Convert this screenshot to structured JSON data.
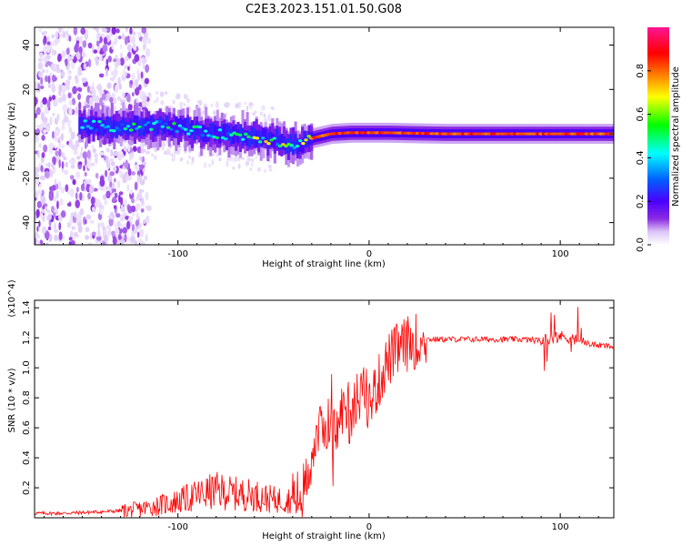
{
  "title": "C2E3.2023.151.01.50.G08",
  "chart_data": [
    {
      "type": "heatmap",
      "xlabel": "Height of straight line (km)",
      "ylabel": "Frequency (Hz)",
      "xlim": [
        -175,
        128
      ],
      "ylim": [
        -50,
        48
      ],
      "xticks": [
        -100,
        0,
        100
      ],
      "yticks": [
        -40,
        -20,
        0,
        20,
        40
      ],
      "colorbar": {
        "label": "Normalized spectral amplitude",
        "range": [
          0,
          1
        ],
        "ticks": [
          "0.0",
          "0.2",
          "0.4",
          "0.6",
          "0.8"
        ],
        "colormap": [
          "#ffffff",
          "#dcc6f7",
          "#8a2be2",
          "#4b00ff",
          "#0060ff",
          "#00ffff",
          "#00ff00",
          "#ffff00",
          "#ff8000",
          "#ff0000",
          "#ff1493"
        ]
      },
      "ridge": {
        "description": "frequency of strongest spectral power vs height",
        "x": [
          -150,
          -130,
          -110,
          -95,
          -80,
          -65,
          -55,
          -45,
          -40,
          -35,
          -30,
          -25,
          -20,
          -10,
          0,
          10,
          20,
          40,
          60,
          80,
          100,
          128
        ],
        "y": [
          4,
          3,
          4,
          2,
          0,
          -1,
          -2,
          -4,
          -5,
          -4,
          -2,
          -1,
          0,
          0.5,
          0.5,
          0.5,
          0.3,
          0,
          0,
          0,
          0,
          0
        ]
      }
    },
    {
      "type": "line",
      "xlabel": "Height of straight line (km)",
      "ylabel": "SNR (10 * v/v)",
      "yexponent": "(x10^4)",
      "xlim": [
        -175,
        128
      ],
      "ylim": [
        0,
        1.45
      ],
      "xticks": [
        -100,
        0,
        100
      ],
      "yticks": [
        0.2,
        0.4,
        0.6,
        0.8,
        1.0,
        1.2,
        1.4
      ],
      "series": [
        {
          "name": "SNR",
          "color": "#ff0000",
          "x": [
            -175,
            -160,
            -140,
            -125,
            -115,
            -100,
            -90,
            -80,
            -70,
            -60,
            -50,
            -40,
            -35,
            -30,
            -27,
            -25,
            -22,
            -20,
            -17,
            -15,
            -12,
            -10,
            -7,
            -5,
            -2,
            0,
            2,
            5,
            8,
            10,
            15,
            20,
            25,
            30,
            40,
            50,
            60,
            70,
            80,
            90,
            95,
            100,
            105,
            110,
            115,
            120,
            128
          ],
          "y": [
            0.03,
            0.03,
            0.04,
            0.05,
            0.07,
            0.11,
            0.15,
            0.18,
            0.16,
            0.15,
            0.12,
            0.12,
            0.15,
            0.4,
            0.6,
            0.55,
            0.65,
            0.6,
            0.55,
            0.7,
            0.75,
            0.65,
            0.8,
            0.75,
            0.85,
            0.75,
            0.82,
            0.9,
            1.0,
            1.05,
            1.12,
            1.16,
            1.18,
            1.19,
            1.19,
            1.19,
            1.19,
            1.19,
            1.19,
            1.18,
            1.2,
            1.21,
            1.2,
            1.18,
            1.16,
            1.15,
            1.14
          ]
        }
      ]
    }
  ]
}
